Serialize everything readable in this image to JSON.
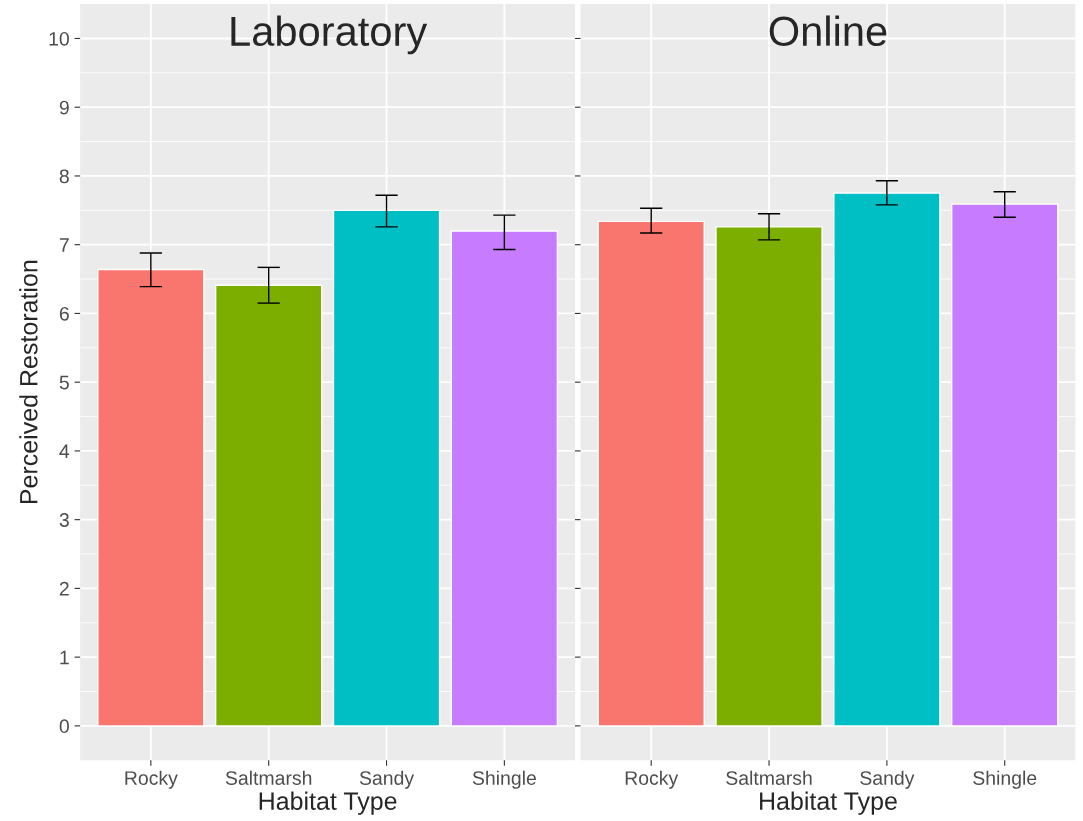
{
  "chart_data": [
    {
      "type": "bar",
      "title": "Laboratory",
      "xlabel": "Habitat Type",
      "ylabel": "Perceived Restoration",
      "categories": [
        "Rocky",
        "Saltmarsh",
        "Sandy",
        "Shingle"
      ],
      "values": [
        6.64,
        6.41,
        7.5,
        7.2
      ],
      "colors": [
        "#f8766d",
        "#7cae00",
        "#00bfc4",
        "#c77cff"
      ],
      "errors": [
        [
          6.39,
          6.88
        ],
        [
          6.15,
          6.67
        ],
        [
          7.26,
          7.72
        ],
        [
          6.93,
          7.43
        ]
      ],
      "ylim": [
        -0.5,
        10.5
      ],
      "yticks": [
        0,
        1,
        2,
        3,
        4,
        5,
        6,
        7,
        8,
        9,
        10
      ],
      "grid": true
    },
    {
      "type": "bar",
      "title": "Online",
      "xlabel": "Habitat Type",
      "categories": [
        "Rocky",
        "Saltmarsh",
        "Sandy",
        "Shingle"
      ],
      "values": [
        7.34,
        7.26,
        7.75,
        7.59
      ],
      "colors": [
        "#f8766d",
        "#7cae00",
        "#00bfc4",
        "#c77cff"
      ],
      "errors": [
        [
          7.17,
          7.53
        ],
        [
          7.07,
          7.45
        ],
        [
          7.58,
          7.93
        ],
        [
          7.4,
          7.77
        ]
      ],
      "ylim": [
        -0.5,
        10.5
      ],
      "yticks": [
        0,
        1,
        2,
        3,
        4,
        5,
        6,
        7,
        8,
        9,
        10
      ],
      "grid": true,
      "tick_labels": "x"
    }
  ]
}
